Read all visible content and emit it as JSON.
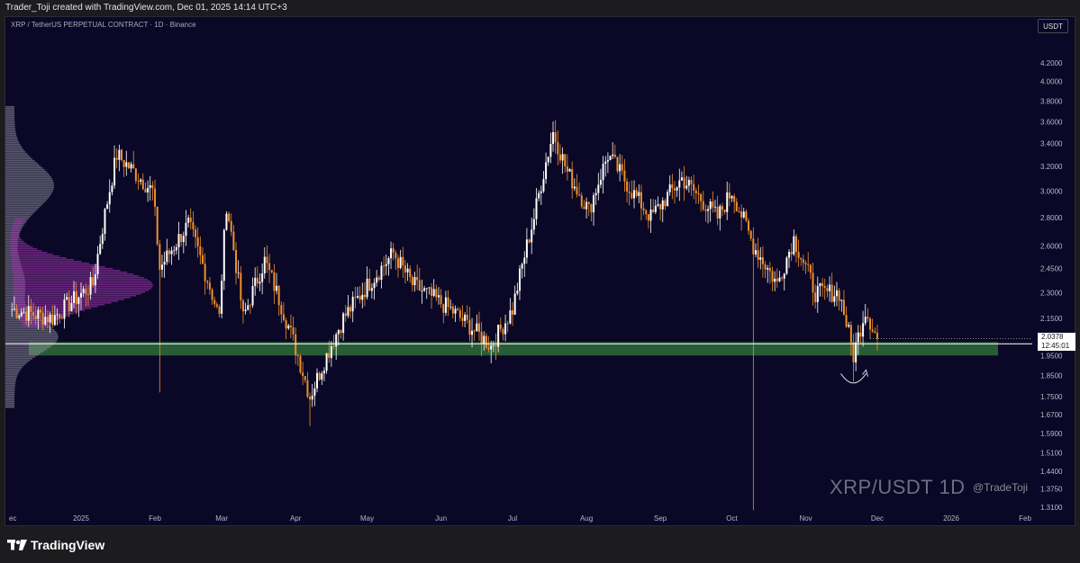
{
  "top_bar": {
    "attribution": "Trader_Toji created with TradingView.com, Dec 01, 2025 14:14 UTC+3"
  },
  "chart_header": {
    "symbol_line": "XRP / TetherUS PERPETUAL CONTRACT · 1D · Binance"
  },
  "currency_button": "USDT",
  "price_tag": {
    "price": "2.0378",
    "countdown": "12:45:01"
  },
  "watermark": {
    "pair": "XRP/USDT 1D",
    "handle": "@TradeToji"
  },
  "footer": {
    "brand": "TradingView"
  },
  "colors": {
    "background": "#0a0826",
    "candle_up": "#ffffff",
    "candle_down": "#f0902a",
    "support_zone": "#2e6b3a",
    "volume_profile_high": "#b23cc0",
    "volume_profile_low": "#9a9aa8"
  },
  "chart_data": {
    "type": "candlestick",
    "y_scale": "log",
    "ylim": [
      1.31,
      4.35
    ],
    "y_ticks": [
      "4.2000",
      "4.0000",
      "3.8000",
      "3.6000",
      "3.4000",
      "3.2000",
      "3.0000",
      "2.8000",
      "2.6000",
      "2.4500",
      "2.3000",
      "2.1500",
      "1.9500",
      "1.8500",
      "1.7500",
      "1.6700",
      "1.5900",
      "1.5100",
      "1.4400",
      "1.3750",
      "1.3100"
    ],
    "x_ticks": [
      "ec",
      "2025",
      "Feb",
      "Mar",
      "Apr",
      "May",
      "Jun",
      "Jul",
      "Aug",
      "Sep",
      "Oct",
      "Nov",
      "Dec",
      "2026",
      "Feb"
    ],
    "support_zone": [
      1.95,
      2.02
    ],
    "last_price": 2.0378,
    "annotation": "curved arrow marking bounce from support zone",
    "ohlc_checkpoints": [
      {
        "date": "2024-12-03",
        "price": 2.2
      },
      {
        "date": "2024-12-20",
        "price": 2.15
      },
      {
        "date": "2025-01-06",
        "price": 2.35
      },
      {
        "date": "2025-01-16",
        "price": 3.3
      },
      {
        "date": "2025-01-31",
        "price": 3.0
      },
      {
        "date": "2025-02-03",
        "price": 2.45
      },
      {
        "date": "2025-02-15",
        "price": 2.75
      },
      {
        "date": "2025-02-28",
        "price": 2.15
      },
      {
        "date": "2025-03-03",
        "price": 2.9
      },
      {
        "date": "2025-03-10",
        "price": 2.15
      },
      {
        "date": "2025-03-19",
        "price": 2.5
      },
      {
        "date": "2025-04-07",
        "price": 1.75
      },
      {
        "date": "2025-04-21",
        "price": 2.15
      },
      {
        "date": "2025-05-12",
        "price": 2.55
      },
      {
        "date": "2025-05-20",
        "price": 2.35
      },
      {
        "date": "2025-06-05",
        "price": 2.2
      },
      {
        "date": "2025-06-22",
        "price": 2.0
      },
      {
        "date": "2025-07-01",
        "price": 2.2
      },
      {
        "date": "2025-07-10",
        "price": 2.8
      },
      {
        "date": "2025-07-18",
        "price": 3.5
      },
      {
        "date": "2025-07-24",
        "price": 3.15
      },
      {
        "date": "2025-08-02",
        "price": 2.85
      },
      {
        "date": "2025-08-10",
        "price": 3.3
      },
      {
        "date": "2025-08-20",
        "price": 3.0
      },
      {
        "date": "2025-08-28",
        "price": 2.8
      },
      {
        "date": "2025-09-10",
        "price": 3.1
      },
      {
        "date": "2025-09-25",
        "price": 2.8
      },
      {
        "date": "2025-10-01",
        "price": 3.0
      },
      {
        "date": "2025-10-10",
        "price": 2.6
      },
      {
        "date": "2025-10-20",
        "price": 2.35
      },
      {
        "date": "2025-10-27",
        "price": 2.65
      },
      {
        "date": "2025-11-05",
        "price": 2.3
      },
      {
        "date": "2025-11-15",
        "price": 2.3
      },
      {
        "date": "2025-11-21",
        "price": 1.95
      },
      {
        "date": "2025-11-26",
        "price": 2.2
      },
      {
        "date": "2025-12-01",
        "price": 2.0378
      }
    ]
  }
}
